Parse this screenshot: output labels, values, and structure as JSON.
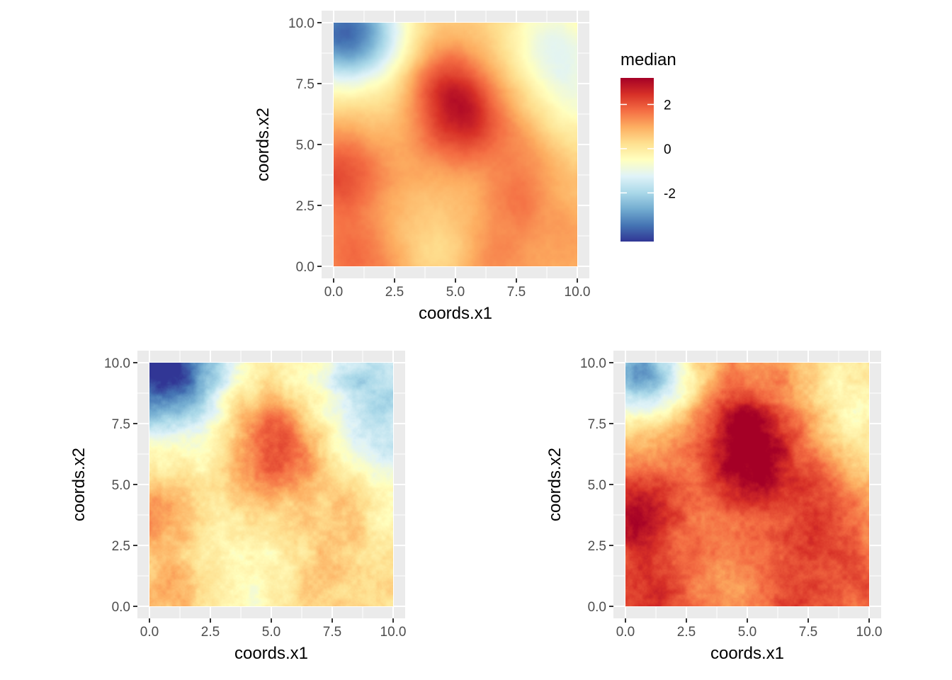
{
  "chart_data": [
    {
      "type": "heatmap",
      "title": "",
      "xlabel": "coords.x1",
      "ylabel": "coords.x2",
      "xlim": [
        0,
        10
      ],
      "ylim": [
        0,
        10
      ],
      "x_ticks": [
        "0.0",
        "2.5",
        "5.0",
        "7.5",
        "10.0"
      ],
      "y_ticks": [
        "0.0",
        "2.5",
        "5.0",
        "7.5",
        "10.0"
      ],
      "grid": true,
      "field_offset": 0,
      "field_noise": 0.12,
      "legend": {
        "title": "median",
        "placement": "right",
        "ticks": [
          2,
          0,
          -2
        ],
        "tick_labels": [
          "2",
          "0",
          "-2"
        ],
        "range": [
          -4.2,
          3.2
        ],
        "palette": "RdYlBu (reversed)",
        "colors": [
          "#313695",
          "#4575b4",
          "#74add1",
          "#abd9e9",
          "#e0f3f8",
          "#ffffbf",
          "#fee090",
          "#fdae61",
          "#f46d43",
          "#d73027",
          "#a50026"
        ]
      }
    },
    {
      "type": "heatmap",
      "title": "",
      "xlabel": "coords.x1",
      "ylabel": "coords.x2",
      "xlim": [
        0,
        10
      ],
      "ylim": [
        0,
        10
      ],
      "x_ticks": [
        "0.0",
        "2.5",
        "5.0",
        "7.5",
        "10.0"
      ],
      "y_ticks": [
        "0.0",
        "2.5",
        "5.0",
        "7.5",
        "10.0"
      ],
      "grid": true,
      "field_offset": -0.9,
      "field_noise": 0.45
    },
    {
      "type": "heatmap",
      "title": "",
      "xlabel": "coords.x1",
      "ylabel": "coords.x2",
      "xlim": [
        0,
        10
      ],
      "ylim": [
        0,
        10
      ],
      "x_ticks": [
        "0.0",
        "2.5",
        "5.0",
        "7.5",
        "10.0"
      ],
      "y_ticks": [
        "0.0",
        "2.5",
        "5.0",
        "7.5",
        "10.0"
      ],
      "grid": true,
      "field_offset": 0.8,
      "field_noise": 0.45
    }
  ]
}
